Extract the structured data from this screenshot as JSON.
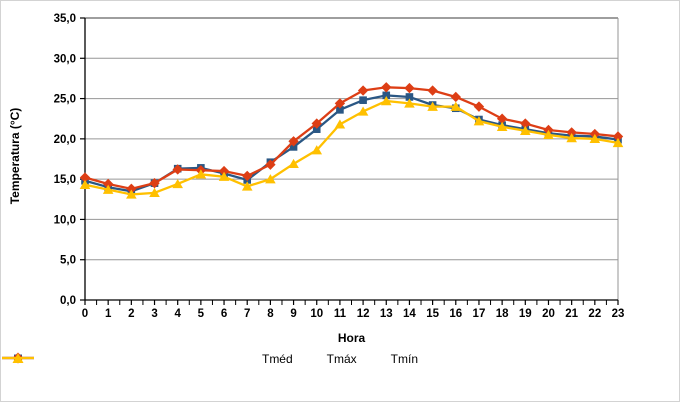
{
  "chart_data": {
    "type": "line",
    "title": "",
    "xlabel": "Hora",
    "ylabel": "Temperatura (°C)",
    "ylim": [
      0,
      35
    ],
    "y_tick_step": 5,
    "y_tick_labels": [
      "0,0",
      "5,0",
      "10,0",
      "15,0",
      "20,0",
      "25,0",
      "30,0",
      "35,0"
    ],
    "categories": [
      "0",
      "1",
      "2",
      "3",
      "4",
      "5",
      "6",
      "7",
      "8",
      "9",
      "10",
      "11",
      "12",
      "13",
      "14",
      "15",
      "16",
      "17",
      "18",
      "19",
      "20",
      "21",
      "22",
      "23"
    ],
    "series": [
      {
        "name": "Tméd",
        "marker": "square",
        "color": "#2A5784",
        "values": [
          14.8,
          14.0,
          13.5,
          14.5,
          16.3,
          16.4,
          15.7,
          14.9,
          17.1,
          19.0,
          21.2,
          23.6,
          24.8,
          25.4,
          25.2,
          24.2,
          23.8,
          22.4,
          21.7,
          21.2,
          20.7,
          20.4,
          20.3,
          19.9
        ]
      },
      {
        "name": "Tmáx",
        "marker": "diamond",
        "color": "#DD3E15",
        "values": [
          15.2,
          14.4,
          13.8,
          14.5,
          16.2,
          16.1,
          16.0,
          15.4,
          16.8,
          19.7,
          21.9,
          24.4,
          26.0,
          26.4,
          26.3,
          26.0,
          25.2,
          24.0,
          22.5,
          21.9,
          21.1,
          20.8,
          20.6,
          20.3
        ]
      },
      {
        "name": "Tmín",
        "marker": "triangle",
        "color": "#FFC000",
        "values": [
          14.3,
          13.7,
          13.1,
          13.3,
          14.4,
          15.6,
          15.3,
          14.1,
          15.0,
          16.9,
          18.6,
          21.8,
          23.4,
          24.7,
          24.4,
          24.0,
          24.0,
          22.2,
          21.5,
          21.0,
          20.5,
          20.1,
          20.0,
          19.5
        ]
      }
    ],
    "grid": true,
    "legend_position": "bottom",
    "colors": {
      "gridline": "#969696",
      "top_border": "#3d3d3d",
      "plot_border": "#969696",
      "axis": "#000000",
      "background": "#FFFFFF",
      "canvas_border": "#D3D3D3"
    }
  }
}
